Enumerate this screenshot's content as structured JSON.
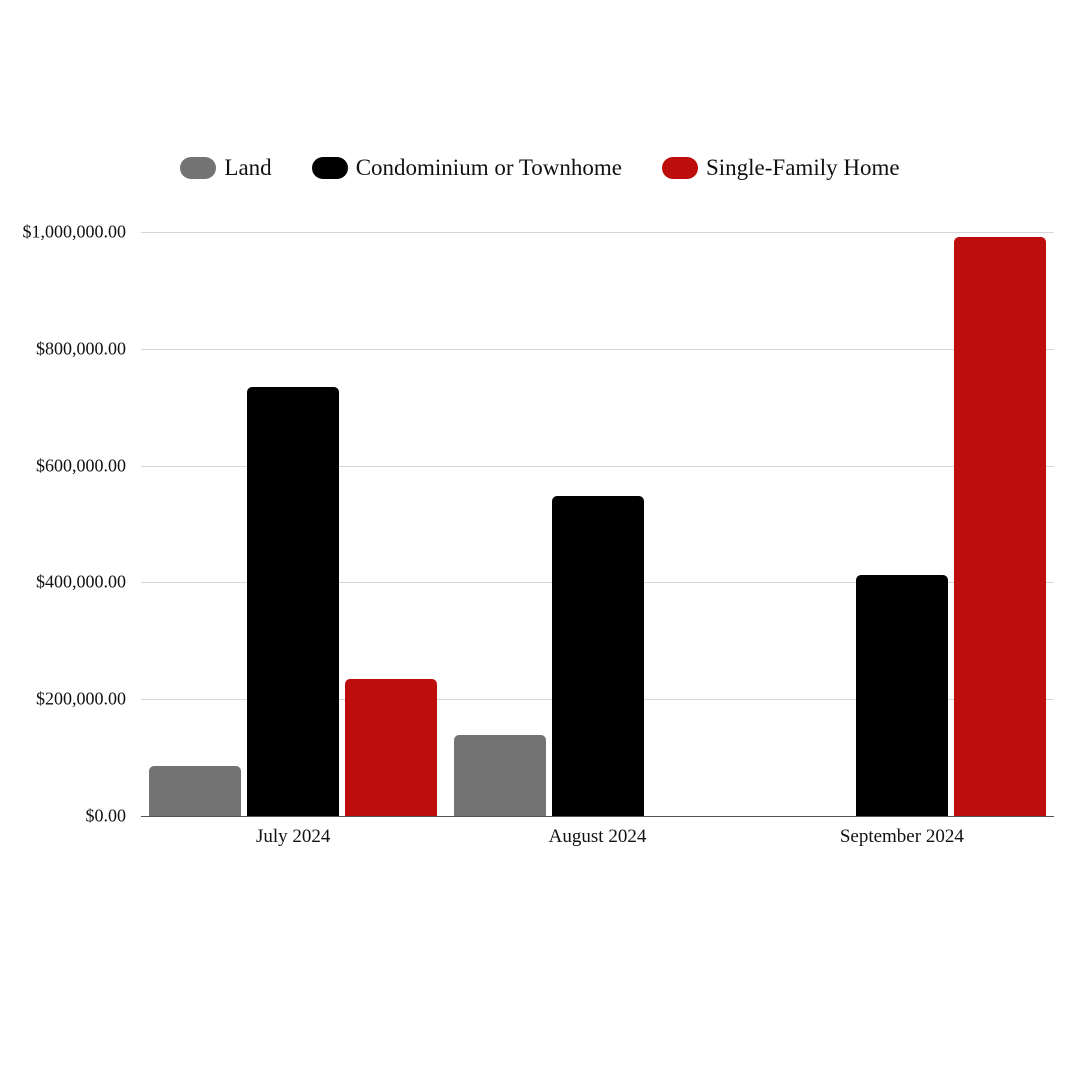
{
  "chart_data": {
    "type": "bar",
    "title": "",
    "xlabel": "",
    "ylabel": "",
    "categories": [
      "July 2024",
      "August 2024",
      "September 2024"
    ],
    "series": [
      {
        "name": "Land",
        "color": "#737373",
        "values": [
          85000,
          139000,
          0
        ]
      },
      {
        "name": "Condominium or Townhome",
        "color": "#000000",
        "values": [
          735000,
          548000,
          413000
        ]
      },
      {
        "name": "Single-Family Home",
        "color": "#bd0d0d",
        "values": [
          235000,
          0,
          991000
        ]
      }
    ],
    "ylim": [
      0,
      1000000
    ],
    "yticks": [
      "$0.00",
      "$200,000.00",
      "$400,000.00",
      "$600,000.00",
      "$800,000.00",
      "$1,000,000.00"
    ],
    "grid": true,
    "legend_position": "top"
  },
  "legend": {
    "items": [
      {
        "label": "Land",
        "color": "#737373"
      },
      {
        "label": "Condominium or Townhome",
        "color": "#000000"
      },
      {
        "label": "Single-Family Home",
        "color": "#bd0d0d"
      }
    ]
  }
}
